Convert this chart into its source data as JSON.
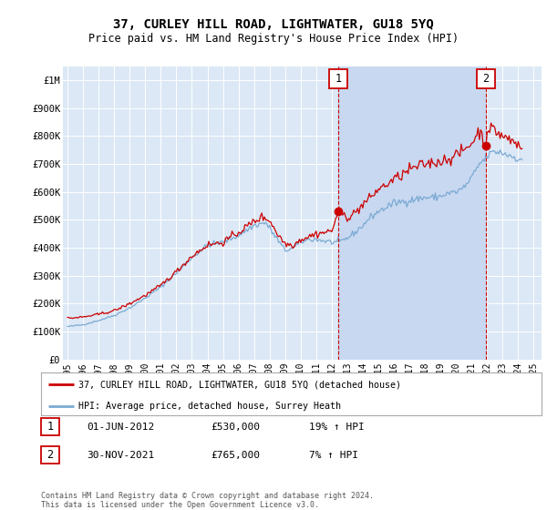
{
  "title": "37, CURLEY HILL ROAD, LIGHTWATER, GU18 5YQ",
  "subtitle": "Price paid vs. HM Land Registry's House Price Index (HPI)",
  "background_color": "#dce8f5",
  "ylim": [
    0,
    1050000
  ],
  "yticks": [
    0,
    100000,
    200000,
    300000,
    400000,
    500000,
    600000,
    700000,
    800000,
    900000,
    1000000
  ],
  "ytick_labels": [
    "£0",
    "£100K",
    "£200K",
    "£300K",
    "£400K",
    "£500K",
    "£600K",
    "£700K",
    "£800K",
    "£900K",
    "£1M"
  ],
  "sale1_date": "01-JUN-2012",
  "sale1_price": "£530,000",
  "sale1_hpi": "19% ↑ HPI",
  "sale2_date": "30-NOV-2021",
  "sale2_price": "£765,000",
  "sale2_hpi": "7% ↑ HPI",
  "footer": "Contains HM Land Registry data © Crown copyright and database right 2024.\nThis data is licensed under the Open Government Licence v3.0.",
  "red_color": "#cc0000",
  "blue_color": "#7aaad4",
  "shade_color": "#c8d8f0",
  "vline_color": "#cc0000",
  "marker1_x_year": 2012.42,
  "marker2_x_year": 2021.92,
  "marker1_price": 530000,
  "marker2_price": 765000,
  "xlim_left": 1994.7,
  "xlim_right": 2025.5,
  "xtick_years": [
    1995,
    1996,
    1997,
    1998,
    1999,
    2000,
    2001,
    2002,
    2003,
    2004,
    2005,
    2006,
    2007,
    2008,
    2009,
    2010,
    2011,
    2012,
    2013,
    2014,
    2015,
    2016,
    2017,
    2018,
    2019,
    2020,
    2021,
    2022,
    2023,
    2024,
    2025
  ]
}
